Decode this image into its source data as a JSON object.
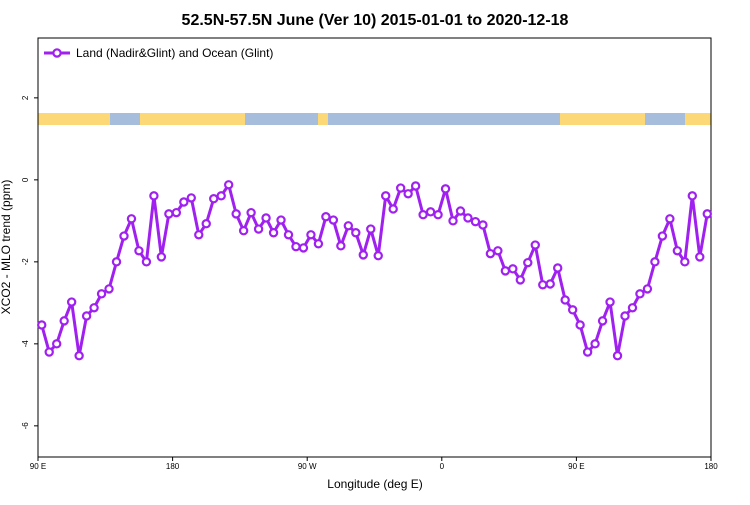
{
  "chart_data": {
    "type": "line",
    "title": "52.5N-57.5N June (Ver 10)   2015-01-01 to 2020-12-18",
    "x_label": "Longitude (deg E)",
    "y_label": "XCO2 - MLO trend (ppm)",
    "x": [
      92.5,
      97.5,
      102.5,
      107.5,
      112.5,
      117.5,
      122.5,
      127.5,
      132.5,
      137.5,
      142.5,
      147.5,
      152.5,
      157.5,
      162.5,
      167.5,
      172.5,
      177.5,
      182.5,
      187.5,
      192.5,
      197.5,
      202.5,
      207.5,
      212.5,
      217.5,
      222.5,
      227.5,
      232.5,
      237.5,
      242.5,
      247.5,
      252.5,
      257.5,
      262.5,
      267.5,
      272.5,
      277.5,
      282.5,
      287.5,
      292.5,
      297.5,
      302.5,
      307.5,
      312.5,
      317.5,
      322.5,
      327.5,
      332.5,
      337.5,
      342.5,
      347.5,
      352.5,
      357.5,
      362.5,
      367.5,
      372.5,
      377.5,
      382.5,
      387.5,
      392.5,
      397.5,
      402.5,
      407.5,
      412.5,
      417.5,
      422.5,
      427.5,
      432.5,
      437.5,
      442.5,
      447.5,
      452.5,
      457.5,
      462.5,
      467.5,
      472.5,
      477.5,
      482.5,
      487.5,
      492.5,
      497.5,
      502.5,
      507.5,
      512.5,
      517.5,
      522.5,
      527.5,
      532.5,
      537.5
    ],
    "series": [
      {
        "name": "Land (Nadir&Glint) and Ocean (Glint)",
        "color": "#a020f0",
        "values": [
          -3.54,
          -4.2,
          -4.0,
          -3.44,
          -2.98,
          -4.29,
          -3.32,
          -3.12,
          -2.78,
          -2.66,
          -2.0,
          -1.37,
          -0.95,
          -1.73,
          -2.0,
          -0.39,
          -1.88,
          -0.83,
          -0.8,
          -0.54,
          -0.44,
          -1.34,
          -1.07,
          -0.46,
          -0.39,
          -0.12,
          -0.83,
          -1.24,
          -0.8,
          -1.2,
          -0.93,
          -1.29,
          -0.98,
          -1.34,
          -1.63,
          -1.66,
          -1.34,
          -1.56,
          -0.9,
          -0.98,
          -1.61,
          -1.12,
          -1.29,
          -1.83,
          -1.2,
          -1.85,
          -0.39,
          -0.71,
          -0.2,
          -0.34,
          -0.15,
          -0.85,
          -0.78,
          -0.85,
          -0.22,
          -1.0,
          -0.76,
          -0.93,
          -1.02,
          -1.1,
          -1.8,
          -1.73,
          -2.22,
          -2.17,
          -2.44,
          -2.02,
          -1.59,
          -2.56,
          -2.54,
          -2.15,
          -2.93,
          -3.17,
          -3.54,
          -4.2,
          -4.0,
          -3.44,
          -2.98,
          -4.29,
          -3.32,
          -3.12,
          -2.78,
          -2.66,
          -2.0,
          -1.37,
          -0.95,
          -1.73,
          -2.0,
          -0.39,
          -1.88,
          -0.83
        ]
      }
    ],
    "xlim": [
      90,
      540
    ],
    "xticks": [
      {
        "value": 90,
        "label": "90 E"
      },
      180,
      {
        "value": 270,
        "label": "90 W"
      },
      {
        "value": 360,
        "label": "0"
      },
      {
        "value": 450,
        "label": "90 E"
      },
      {
        "value": 540,
        "label": "180"
      }
    ],
    "ylim": [
      -6.76,
      3.46
    ],
    "yticks": [
      -6,
      -4,
      -2,
      0,
      2
    ],
    "legend": "top-left"
  }
}
